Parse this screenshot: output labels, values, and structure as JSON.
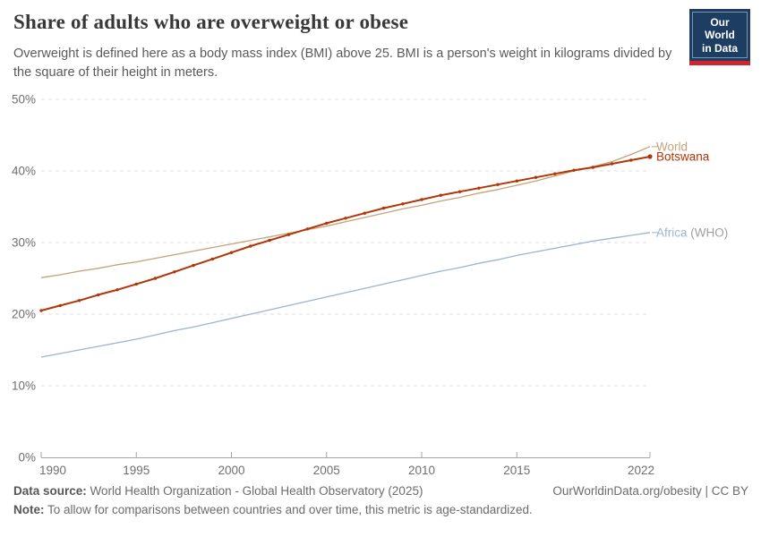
{
  "header": {
    "logo_line1": "Our World",
    "logo_line2": "in Data"
  },
  "chart_data": {
    "type": "line",
    "title": "Share of adults who are overweight or obese",
    "subtitle": "Overweight is defined here as a body mass index (BMI) above 25. BMI is a person's weight in kilograms divided by the square of their height in meters.",
    "xlabel": "",
    "ylabel": "",
    "xlim": [
      1990,
      2022
    ],
    "ylim": [
      0,
      50
    ],
    "xticks": [
      1990,
      1995,
      2000,
      2005,
      2010,
      2015,
      2022
    ],
    "yticks": [
      0,
      10,
      20,
      30,
      40,
      50
    ],
    "ytick_suffix": "%",
    "grid": "horizontal-dashed",
    "legend_position": "end-of-line-labels",
    "x": [
      1990,
      1991,
      1992,
      1993,
      1994,
      1995,
      1996,
      1997,
      1998,
      1999,
      2000,
      2001,
      2002,
      2003,
      2004,
      2005,
      2006,
      2007,
      2008,
      2009,
      2010,
      2011,
      2012,
      2013,
      2014,
      2015,
      2016,
      2017,
      2018,
      2019,
      2020,
      2021,
      2022
    ],
    "series": [
      {
        "id": "world",
        "name": "World",
        "label": "World",
        "label_suffix": "",
        "color": "#C6A178",
        "suffix_color": "#9e9e9e",
        "width": 1.3,
        "markers": false,
        "values": [
          25.1,
          25.5,
          26.0,
          26.4,
          26.9,
          27.3,
          27.8,
          28.3,
          28.8,
          29.3,
          29.8,
          30.3,
          30.8,
          31.3,
          31.8,
          32.3,
          32.9,
          33.5,
          34.1,
          34.7,
          35.2,
          35.8,
          36.3,
          36.9,
          37.4,
          38.0,
          38.6,
          39.3,
          40.0,
          40.6,
          41.3,
          42.3,
          43.4
        ]
      },
      {
        "id": "africa-who",
        "name": "Africa (WHO)",
        "label": "Africa",
        "label_suffix": " (WHO)",
        "color": "#9DB4D0",
        "suffix_color": "#9e9e9e",
        "width": 1.3,
        "markers": false,
        "values": [
          14.0,
          14.5,
          15.0,
          15.5,
          16.0,
          16.5,
          17.1,
          17.7,
          18.2,
          18.8,
          19.4,
          20.0,
          20.6,
          21.2,
          21.8,
          22.4,
          23.0,
          23.6,
          24.2,
          24.8,
          25.4,
          26.0,
          26.5,
          27.1,
          27.6,
          28.2,
          28.7,
          29.2,
          29.7,
          30.2,
          30.6,
          31.0,
          31.4
        ]
      },
      {
        "id": "botswana",
        "name": "Botswana",
        "label": "Botswana",
        "label_suffix": "",
        "color": "#B13507",
        "suffix_color": "#9e9e9e",
        "width": 2,
        "markers": true,
        "values": [
          20.5,
          21.2,
          21.9,
          22.7,
          23.4,
          24.2,
          25.0,
          25.9,
          26.8,
          27.7,
          28.6,
          29.5,
          30.3,
          31.1,
          31.9,
          32.7,
          33.4,
          34.1,
          34.8,
          35.4,
          36.0,
          36.6,
          37.1,
          37.6,
          38.1,
          38.6,
          39.1,
          39.6,
          40.1,
          40.5,
          41.0,
          41.5,
          42.0
        ]
      }
    ]
  },
  "footer": {
    "datasource_label": "Data source:",
    "datasource_value": " World Health Organization - Global Health Observatory (2025)",
    "link": "OurWorldinData.org/obesity | CC BY",
    "note_label": "Note:",
    "note_value": " To allow for comparisons between countries and over time, this metric is age-standardized."
  }
}
